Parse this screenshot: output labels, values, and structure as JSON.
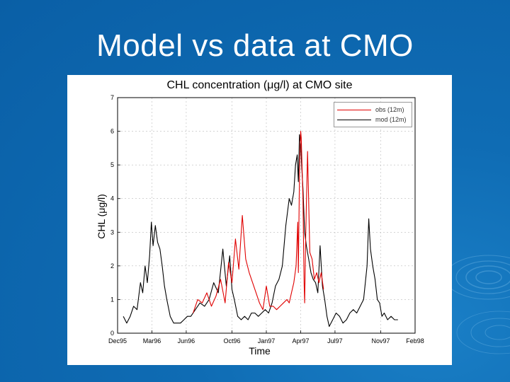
{
  "slide": {
    "title": "Model vs data at CMO"
  },
  "chart_data": {
    "type": "line",
    "title": "CHL concentration (μg/l) at CMO site",
    "xlabel": "Time",
    "ylabel": "CHL (μg/l)",
    "ylim": [
      0,
      7
    ],
    "yticks": [
      0,
      1,
      2,
      3,
      4,
      5,
      6,
      7
    ],
    "xlim": [
      0,
      26
    ],
    "x_unit": "months since Dec95",
    "xtick_positions": [
      0,
      3,
      6,
      10,
      13,
      16,
      19,
      23,
      26
    ],
    "xtick_labels": [
      "Dec95",
      "Mar96",
      "Jun96",
      "Oct96",
      "Jan97",
      "Apr97",
      "Jul97",
      "Nov97",
      "Feb98"
    ],
    "grid": true,
    "legend_position": "top-right",
    "series": [
      {
        "name": "obs (12m)",
        "color": "#e00000",
        "x": [
          6.6,
          7.0,
          7.4,
          7.8,
          8.2,
          8.6,
          9.0,
          9.4,
          9.7,
          10.0,
          10.3,
          10.6,
          10.9,
          11.2,
          11.5,
          11.8,
          12.1,
          12.4,
          12.7,
          13.0,
          13.3,
          13.6,
          13.9,
          14.2,
          14.5,
          14.8,
          15.0,
          15.2,
          15.4,
          15.6,
          15.75,
          15.8,
          15.9,
          15.95,
          16.0,
          16.05,
          16.1,
          16.2,
          16.3,
          16.35,
          16.45,
          16.6,
          16.8,
          17.0,
          17.2,
          17.4,
          17.6,
          17.8,
          18.0
        ],
        "y": [
          0.6,
          1.0,
          0.9,
          1.2,
          0.8,
          1.1,
          1.6,
          0.9,
          2.1,
          1.5,
          2.8,
          1.9,
          3.5,
          2.2,
          1.8,
          1.5,
          1.2,
          0.9,
          0.7,
          1.4,
          0.8,
          0.8,
          0.7,
          0.8,
          0.9,
          1.0,
          0.9,
          1.2,
          1.5,
          2.0,
          3.3,
          1.8,
          4.7,
          5.5,
          6.0,
          5.8,
          5.2,
          4.0,
          1.5,
          0.9,
          3.0,
          5.4,
          2.4,
          2.2,
          1.6,
          1.8,
          1.5,
          1.8,
          1.3
        ]
      },
      {
        "name": "mod (12m)",
        "color": "#000000",
        "x": [
          0.5,
          0.8,
          1.1,
          1.4,
          1.7,
          2.0,
          2.2,
          2.4,
          2.6,
          2.8,
          2.95,
          3.1,
          3.3,
          3.5,
          3.7,
          3.9,
          4.1,
          4.3,
          4.6,
          4.9,
          5.2,
          5.5,
          5.8,
          6.1,
          6.4,
          6.8,
          7.2,
          7.6,
          8.0,
          8.4,
          8.8,
          9.2,
          9.5,
          9.8,
          10.0,
          10.2,
          10.5,
          10.8,
          11.1,
          11.4,
          11.7,
          12.0,
          12.3,
          12.6,
          12.9,
          13.2,
          13.5,
          13.8,
          14.1,
          14.4,
          14.7,
          15.0,
          15.2,
          15.4,
          15.55,
          15.7,
          15.8,
          15.9,
          16.0,
          16.1,
          16.2,
          16.35,
          16.5,
          16.7,
          16.9,
          17.1,
          17.3,
          17.5,
          17.7,
          17.9,
          18.1,
          18.3,
          18.5,
          18.8,
          19.1,
          19.4,
          19.7,
          20.0,
          20.3,
          20.6,
          20.9,
          21.2,
          21.5,
          21.8,
          21.95,
          22.1,
          22.3,
          22.5,
          22.7,
          22.9,
          23.1,
          23.3,
          23.6,
          23.9,
          24.2,
          24.5
        ],
        "y": [
          0.5,
          0.3,
          0.5,
          0.8,
          0.7,
          1.5,
          1.2,
          2.0,
          1.5,
          2.3,
          3.3,
          2.6,
          3.2,
          2.7,
          2.5,
          2.0,
          1.4,
          1.0,
          0.5,
          0.3,
          0.3,
          0.3,
          0.4,
          0.5,
          0.5,
          0.7,
          0.9,
          0.8,
          1.0,
          1.5,
          1.2,
          2.5,
          1.4,
          2.3,
          1.3,
          1.0,
          0.5,
          0.4,
          0.5,
          0.4,
          0.6,
          0.6,
          0.5,
          0.6,
          0.7,
          0.6,
          0.9,
          1.4,
          1.6,
          2.0,
          3.2,
          4.0,
          3.8,
          4.2,
          5.0,
          5.3,
          4.5,
          5.9,
          5.6,
          4.9,
          4.3,
          3.0,
          2.6,
          2.2,
          1.8,
          1.6,
          1.5,
          1.2,
          2.6,
          1.4,
          1.0,
          0.5,
          0.2,
          0.4,
          0.6,
          0.5,
          0.3,
          0.4,
          0.6,
          0.7,
          0.6,
          0.8,
          1.0,
          2.0,
          3.4,
          2.5,
          2.0,
          1.6,
          1.0,
          0.9,
          0.5,
          0.6,
          0.4,
          0.5,
          0.4,
          0.4
        ]
      }
    ]
  }
}
